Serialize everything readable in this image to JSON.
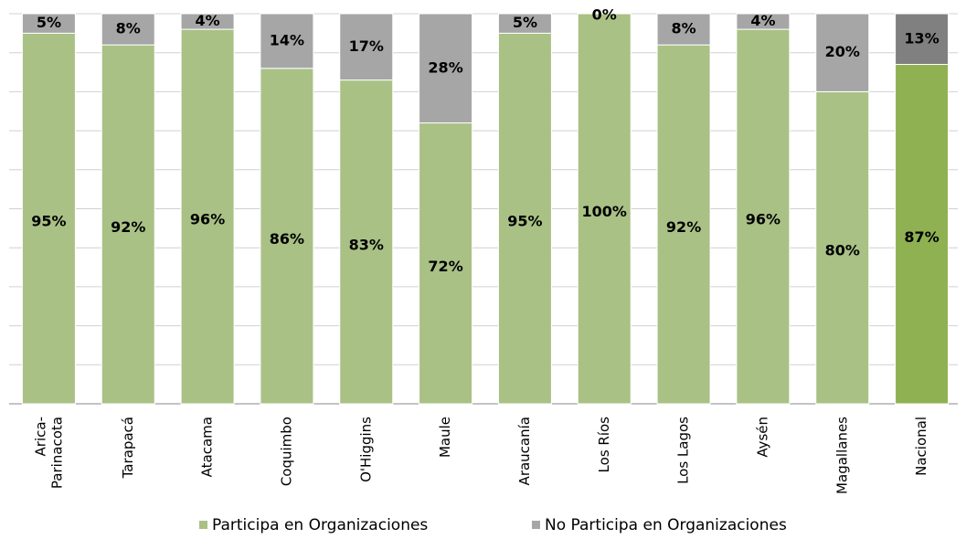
{
  "chart_data": {
    "type": "stacked_bar",
    "categories": [
      "Arica-\nParinacota",
      "Tarapacá",
      "Atacama",
      "Coquimbo",
      "O'Higgins",
      "Maule",
      "Araucanía",
      "Los Ríos",
      "Los Lagos",
      "Aysén",
      "Magallanes",
      "Nacional"
    ],
    "series": [
      {
        "name": "Participa en Organizaciones",
        "color": "#a9c185",
        "colors": [
          "#a9c185",
          "#a9c185",
          "#a9c185",
          "#a9c185",
          "#a9c185",
          "#a9c185",
          "#a9c185",
          "#a9c185",
          "#a9c185",
          "#a9c185",
          "#a9c185",
          "#8fb152"
        ],
        "values": [
          95,
          92,
          96,
          86,
          83,
          72,
          95,
          100,
          92,
          96,
          80,
          87
        ],
        "value_labels": [
          "95%",
          "92%",
          "96%",
          "86%",
          "83%",
          "72%",
          "95%",
          "100%",
          "92%",
          "96%",
          "80%",
          "87%"
        ]
      },
      {
        "name": "No Participa en Organizaciones",
        "color": "#a6a6a6",
        "colors": [
          "#a6a6a6",
          "#a6a6a6",
          "#a6a6a6",
          "#a6a6a6",
          "#a6a6a6",
          "#a6a6a6",
          "#a6a6a6",
          "#a6a6a6",
          "#a6a6a6",
          "#a6a6a6",
          "#a6a6a6",
          "#808080"
        ],
        "values": [
          5,
          8,
          4,
          14,
          17,
          28,
          5,
          0,
          8,
          4,
          20,
          13
        ],
        "value_labels": [
          "5%",
          "8%",
          "4%",
          "14%",
          "17%",
          "28%",
          "5%",
          "0%",
          "8%",
          "4%",
          "20%",
          "13%"
        ]
      }
    ],
    "ylim": [
      0,
      100
    ],
    "yticks": [
      0,
      10,
      20,
      30,
      40,
      50,
      60,
      70,
      80,
      90,
      100
    ],
    "grid": true,
    "legend": "bottom"
  }
}
